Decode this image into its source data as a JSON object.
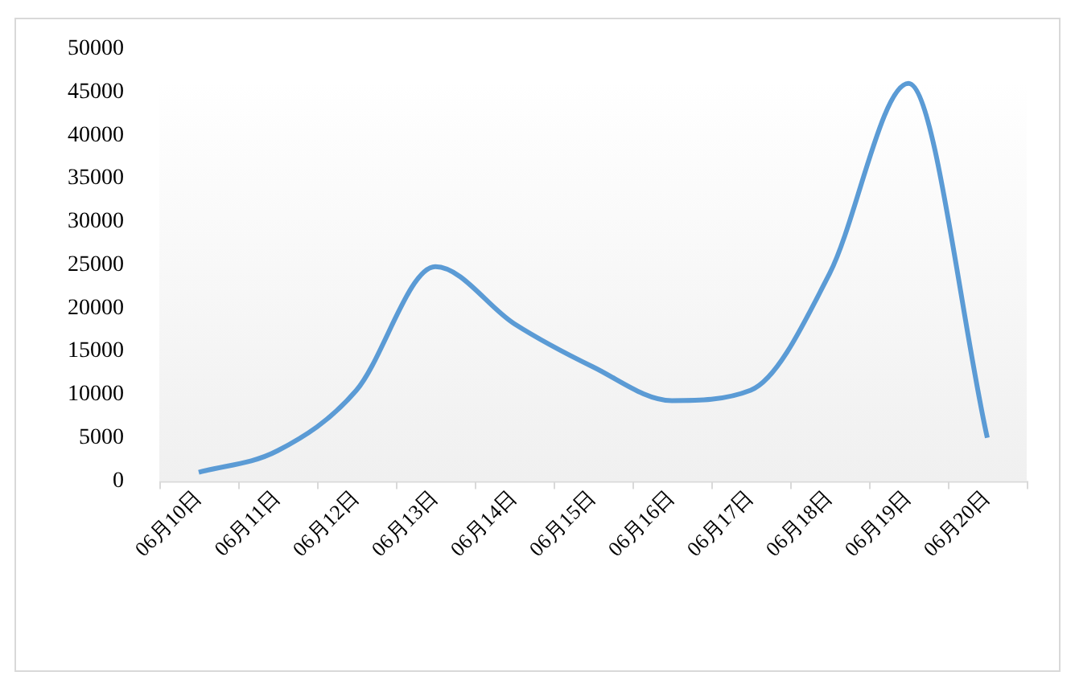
{
  "chart_data": {
    "type": "line",
    "categories": [
      "06月10日",
      "06月11日",
      "06月12日",
      "06月13日",
      "06月14日",
      "06月15日",
      "06月16日",
      "06月17日",
      "06月18日",
      "06月19日",
      "06月20日"
    ],
    "series": [
      {
        "color": "#5b9bd5",
        "values": [
          1000,
          3500,
          10500,
          24800,
          18200,
          13200,
          9300,
          10500,
          24000,
          46000,
          5000
        ]
      }
    ],
    "ylim": [
      0,
      50000
    ],
    "yticks": [
      0,
      5000,
      10000,
      15000,
      20000,
      25000,
      30000,
      35000,
      40000,
      45000,
      50000
    ],
    "grid": false,
    "legend": false,
    "marker": "none",
    "line_style": "solid"
  }
}
